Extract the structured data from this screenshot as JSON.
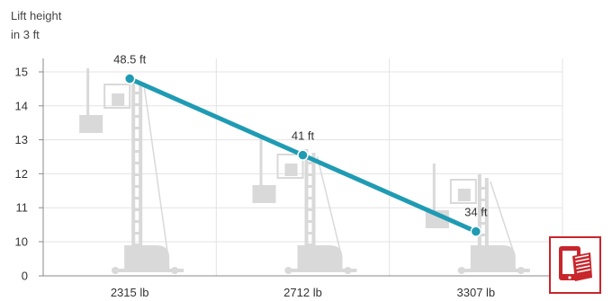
{
  "chart_data": {
    "type": "line",
    "ylabel_line1": "Lift height",
    "ylabel_line2": "in 3 ft",
    "categories": [
      "2315 lb",
      "2712 lb",
      "3307 lb"
    ],
    "values": [
      14.8,
      12.55,
      10.3
    ],
    "data_labels": [
      "48.5 ft",
      "41 ft",
      "34 ft"
    ],
    "y_ticks": [
      "15",
      "14",
      "13",
      "12",
      "11",
      "10",
      "0"
    ],
    "y_tick_values": [
      15,
      14,
      13,
      12,
      11,
      10,
      0
    ],
    "ylim": [
      0,
      15
    ],
    "grid": true,
    "line_color": "#1f9bb3",
    "grid_color": "#e3e3e3",
    "forklift_color": "#d9d9d9"
  },
  "badge": {
    "icon": "tablet-document-icon",
    "color": "#c8262c"
  }
}
